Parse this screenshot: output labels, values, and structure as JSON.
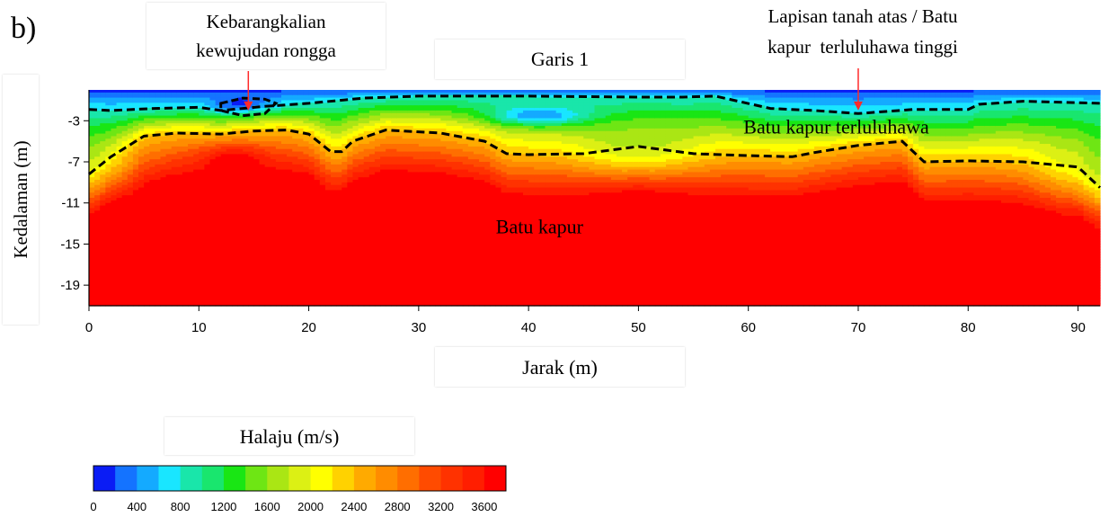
{
  "panel_label": "b)",
  "chart_data": {
    "type": "heatmap",
    "title": "Garis 1",
    "xlabel": "Jarak (m)",
    "ylabel": "Kedalaman (m)",
    "xlim": [
      0,
      92
    ],
    "ylim": [
      -21,
      0
    ],
    "x_ticks": [
      0,
      10,
      20,
      30,
      40,
      50,
      60,
      70,
      80,
      90
    ],
    "y_ticks": [
      -3,
      -7,
      -11,
      -15,
      -19
    ],
    "colorbar": {
      "title": "Halaju (m/s)",
      "ticks": [
        0,
        400,
        800,
        1200,
        1600,
        2000,
        2400,
        2800,
        3200,
        3600
      ],
      "range": [
        0,
        3800
      ],
      "colors": [
        "#0a1cf5",
        "#1473ff",
        "#14aaff",
        "#19e6ff",
        "#19e6aa",
        "#19e66e",
        "#19e614",
        "#6ee614",
        "#aae614",
        "#dcf014",
        "#ffff00",
        "#ffd200",
        "#ffaa00",
        "#ff8c00",
        "#ff6e00",
        "#ff4b00",
        "#ff3200",
        "#ff1e00",
        "#ff0000"
      ]
    },
    "layers": [
      {
        "name": "Lapisan tanah atas / Batu kapur terluluhawa tinggi",
        "velocity_range": [
          0,
          800
        ]
      },
      {
        "name": "Batu kapur terluluhawa",
        "velocity_range": [
          800,
          2400
        ]
      },
      {
        "name": "Batu kapur",
        "velocity_range": [
          2400,
          3800
        ]
      }
    ],
    "boundary_upper": {
      "x": [
        0,
        2,
        6,
        10,
        12,
        16,
        20,
        25,
        30,
        40,
        50,
        54,
        57,
        62,
        66,
        70,
        75,
        80,
        81,
        85,
        92
      ],
      "y": [
        -1.9,
        -2.0,
        -1.8,
        -1.7,
        -2.0,
        -1.6,
        -1.3,
        -0.8,
        -0.6,
        -0.6,
        -0.7,
        -0.7,
        -0.6,
        -1.8,
        -2.0,
        -2.3,
        -1.9,
        -1.9,
        -1.4,
        -1.1,
        -1.3
      ]
    },
    "boundary_lower": {
      "x": [
        0,
        2,
        5,
        8,
        12,
        15,
        18,
        20,
        22,
        23,
        24,
        27,
        32,
        36,
        38,
        40,
        45,
        50,
        55,
        60,
        64,
        66,
        70,
        74,
        76,
        80,
        85,
        90,
        92
      ],
      "y": [
        -8.2,
        -6.5,
        -4.5,
        -4.2,
        -4.3,
        -4.0,
        -3.9,
        -4.3,
        -6.0,
        -6.0,
        -5.0,
        -3.9,
        -4.2,
        -5.0,
        -6.2,
        -6.3,
        -6.2,
        -5.5,
        -6.2,
        -6.4,
        -6.5,
        -6.1,
        -5.4,
        -5.0,
        -7.0,
        -6.9,
        -7.0,
        -7.5,
        -9.5
      ]
    },
    "cavity": {
      "x": [
        12,
        14,
        16,
        17,
        16,
        14,
        12
      ],
      "y": [
        -1.3,
        -0.8,
        -0.9,
        -1.3,
        -2.3,
        -2.5,
        -2.0
      ]
    },
    "annotations": [
      {
        "text": "Kebarangkalian kewujudan rongga",
        "line1": "Kebarangkalian",
        "line2": "kewujudan rongga",
        "x": 14.5,
        "y": -2.0
      },
      {
        "text": "Lapisan tanah atas / Batu kapur  terluluhawa tinggi",
        "line1": "Lapisan tanah atas / Batu",
        "line2": "kapur  terluluhawa tinggi",
        "x": 70,
        "y": -2.0
      },
      {
        "text": "Batu kapur terluluhawa",
        "x": 68,
        "y": -3.8
      },
      {
        "text": "Batu kapur",
        "x": 41,
        "y": -13.5
      }
    ]
  }
}
